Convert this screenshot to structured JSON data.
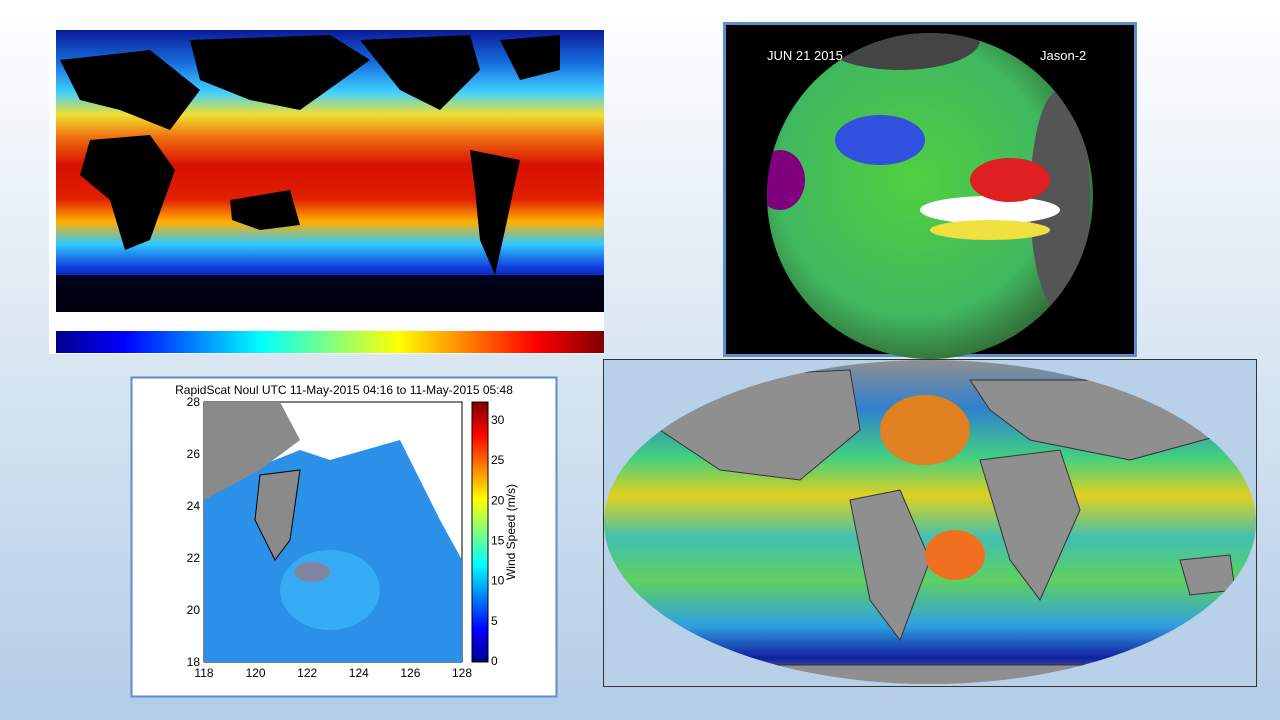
{
  "slide": {
    "globe": {
      "date": "JUN 21  2015",
      "satellite": "Jason-2"
    },
    "wind_plot": {
      "title": "RapidScat Noul UTC 11-May-2015 04:16 to 11-May-2015 05:48",
      "y_ticks": [
        28,
        26,
        24,
        22,
        20,
        18
      ],
      "x_ticks": [
        118,
        120,
        122,
        124,
        126,
        128
      ],
      "colorbar_ticks": [
        30,
        25,
        20,
        15,
        10,
        5,
        0
      ],
      "colorbar_label": "Wind Speed (m/s)"
    }
  }
}
